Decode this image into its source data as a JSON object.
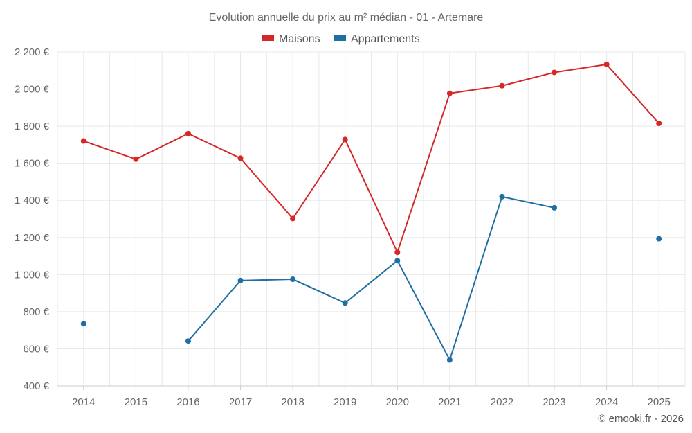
{
  "chart_data": {
    "type": "line",
    "title": "Evolution annuelle du prix au m² médian - 01 - Artemare",
    "categories": [
      "2014",
      "2015",
      "2016",
      "2017",
      "2018",
      "2019",
      "2020",
      "2021",
      "2022",
      "2023",
      "2024",
      "2025"
    ],
    "y_ticks": [
      "400 €",
      "600 €",
      "800 €",
      "1 000 €",
      "1 200 €",
      "1 400 €",
      "1 600 €",
      "1 800 €",
      "2 000 €",
      "2 200 €"
    ],
    "ylim": [
      400,
      2200
    ],
    "grid": true,
    "legend_position": "top-center",
    "series": [
      {
        "name": "Maisons",
        "color": "#d62728",
        "values": [
          1720,
          1622,
          1760,
          1627,
          1302,
          1728,
          1120,
          1977,
          2018,
          2090,
          2133,
          1815
        ]
      },
      {
        "name": "Appartements",
        "color": "#1f6fa3",
        "values": [
          735,
          null,
          642,
          968,
          975,
          847,
          1075,
          540,
          1420,
          1360,
          null,
          1193
        ]
      }
    ]
  },
  "credit": "© emooki.fr - 2026"
}
